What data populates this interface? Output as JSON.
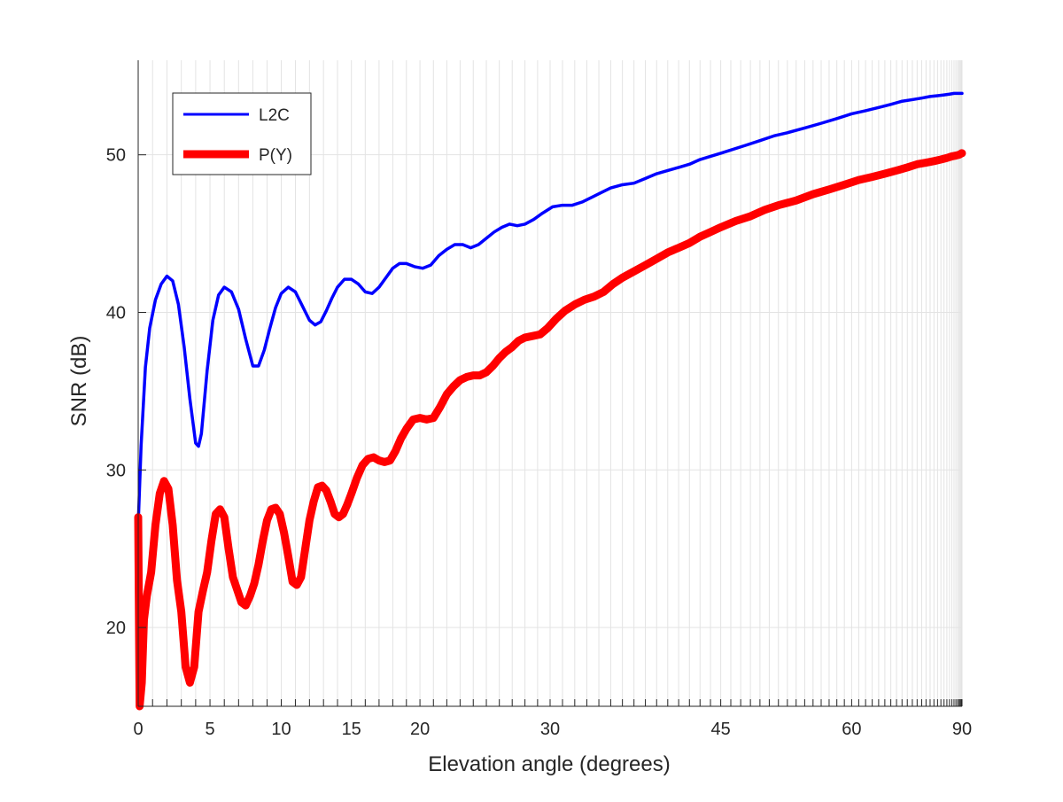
{
  "chart_data": {
    "type": "line",
    "title": "",
    "xlabel": "Elevation angle (degrees)",
    "ylabel": "SNR (dB)",
    "x_scale": "sine of elevation angle",
    "xlim": [
      0,
      90
    ],
    "ylim": [
      15,
      56
    ],
    "x_ticks": [
      0,
      5,
      10,
      15,
      20,
      30,
      45,
      60,
      90
    ],
    "y_ticks": [
      20,
      30,
      40,
      50
    ],
    "grid": true,
    "legend_position": "top-left",
    "series": [
      {
        "name": "L2C",
        "color": "#0000ff",
        "x": [
          0,
          0.2,
          0.5,
          0.8,
          1.2,
          1.6,
          2.0,
          2.4,
          2.8,
          3.2,
          3.6,
          4.0,
          4.2,
          4.4,
          4.8,
          5.2,
          5.6,
          6.0,
          6.5,
          7.0,
          7.5,
          8.0,
          8.4,
          8.8,
          9.2,
          9.6,
          10.0,
          10.5,
          11.0,
          11.5,
          12.0,
          12.4,
          12.8,
          13.2,
          13.6,
          14.0,
          14.5,
          15.0,
          15.5,
          16.0,
          16.5,
          17.0,
          17.5,
          18.0,
          18.5,
          19.0,
          19.6,
          20.2,
          20.8,
          21.4,
          22.0,
          22.6,
          23.2,
          23.8,
          24.4,
          25.0,
          25.6,
          26.2,
          26.8,
          27.4,
          28.0,
          28.7,
          29.4,
          30.2,
          31.0,
          31.8,
          32.6,
          33.4,
          34.2,
          35.0,
          36.0,
          37.0,
          38.0,
          39.0,
          40.0,
          41.0,
          42.0,
          43.0,
          44.0,
          45.0,
          46.0,
          47.5,
          49.0,
          50.5,
          52.0,
          54.0,
          56.0,
          58.0,
          60.0,
          62.0,
          64.0,
          66.0,
          68.0,
          70.0,
          72.0,
          74.0,
          76.0,
          78.0,
          80.0,
          82.0,
          84.0,
          86.0,
          88.0,
          90.0
        ],
        "values": [
          26.5,
          31.5,
          36.5,
          39.0,
          40.8,
          41.8,
          42.3,
          42.0,
          40.5,
          37.8,
          34.5,
          31.7,
          31.5,
          32.3,
          36.3,
          39.5,
          41.1,
          41.6,
          41.3,
          40.2,
          38.3,
          36.6,
          36.6,
          37.6,
          39.0,
          40.3,
          41.2,
          41.6,
          41.3,
          40.4,
          39.5,
          39.2,
          39.4,
          40.1,
          40.9,
          41.6,
          42.1,
          42.1,
          41.8,
          41.3,
          41.2,
          41.6,
          42.2,
          42.8,
          43.1,
          43.1,
          42.9,
          42.8,
          43.0,
          43.6,
          44.0,
          44.3,
          44.3,
          44.1,
          44.3,
          44.7,
          45.1,
          45.4,
          45.6,
          45.5,
          45.6,
          45.9,
          46.3,
          46.7,
          46.8,
          46.8,
          47.0,
          47.3,
          47.6,
          47.9,
          48.1,
          48.2,
          48.5,
          48.8,
          49.0,
          49.2,
          49.4,
          49.7,
          49.9,
          50.1,
          50.3,
          50.6,
          50.9,
          51.2,
          51.4,
          51.7,
          52.0,
          52.3,
          52.6,
          52.8,
          53.0,
          53.2,
          53.4,
          53.5,
          53.6,
          53.7,
          53.75,
          53.8,
          53.85,
          53.9,
          53.9,
          53.9,
          53.9,
          53.9
        ]
      },
      {
        "name": "P(Y)",
        "color": "#ff0000",
        "x": [
          0,
          0.1,
          0.25,
          0.4,
          0.6,
          0.9,
          1.2,
          1.5,
          1.8,
          2.1,
          2.4,
          2.7,
          3.0,
          3.3,
          3.6,
          3.9,
          4.2,
          4.5,
          4.8,
          5.1,
          5.4,
          5.7,
          6.0,
          6.3,
          6.6,
          6.9,
          7.2,
          7.5,
          7.8,
          8.1,
          8.4,
          8.7,
          9.0,
          9.3,
          9.6,
          9.9,
          10.2,
          10.5,
          10.8,
          11.1,
          11.4,
          11.7,
          12.0,
          12.3,
          12.6,
          12.9,
          13.2,
          13.5,
          13.8,
          14.1,
          14.4,
          14.7,
          15.0,
          15.4,
          15.8,
          16.2,
          16.6,
          17.0,
          17.4,
          17.8,
          18.2,
          18.6,
          19.0,
          19.5,
          20.0,
          20.5,
          21.0,
          21.5,
          22.0,
          22.5,
          23.0,
          23.5,
          24.0,
          24.5,
          25.0,
          25.5,
          26.0,
          26.5,
          27.0,
          27.5,
          28.0,
          28.6,
          29.2,
          29.8,
          30.5,
          31.2,
          32.0,
          32.8,
          33.6,
          34.4,
          35.2,
          36.0,
          37.0,
          38.0,
          39.0,
          40.0,
          41.0,
          42.0,
          43.0,
          44.0,
          45.0,
          46.5,
          48.0,
          49.5,
          51.0,
          53.0,
          55.0,
          57.0,
          59.0,
          61.0,
          63.0,
          65.0,
          67.0,
          69.0,
          71.0,
          73.0,
          75.0,
          77.0,
          79.0,
          81.0,
          83.0,
          85.0,
          86.5,
          88.0,
          89.0,
          90.0
        ],
        "values": [
          27.0,
          15.0,
          16.5,
          20.5,
          22.0,
          23.5,
          26.5,
          28.5,
          29.3,
          28.8,
          26.5,
          23.0,
          21.0,
          17.5,
          16.5,
          17.5,
          21.0,
          22.3,
          23.5,
          25.5,
          27.2,
          27.5,
          27.0,
          25.0,
          23.2,
          22.4,
          21.6,
          21.4,
          22.0,
          22.8,
          24.0,
          25.5,
          26.8,
          27.5,
          27.6,
          27.2,
          26.0,
          24.5,
          22.9,
          22.7,
          23.2,
          25.0,
          26.8,
          28.0,
          28.9,
          29.0,
          28.7,
          28.0,
          27.2,
          27.0,
          27.2,
          27.8,
          28.5,
          29.5,
          30.3,
          30.7,
          30.8,
          30.6,
          30.5,
          30.6,
          31.2,
          32.0,
          32.6,
          33.2,
          33.3,
          33.2,
          33.3,
          34.0,
          34.8,
          35.3,
          35.7,
          35.9,
          36.0,
          36.0,
          36.2,
          36.6,
          37.1,
          37.5,
          37.8,
          38.2,
          38.4,
          38.5,
          38.6,
          39.0,
          39.6,
          40.1,
          40.5,
          40.8,
          41.0,
          41.3,
          41.8,
          42.2,
          42.6,
          43.0,
          43.4,
          43.8,
          44.1,
          44.4,
          44.8,
          45.1,
          45.4,
          45.8,
          46.1,
          46.5,
          46.8,
          47.1,
          47.5,
          47.8,
          48.1,
          48.4,
          48.6,
          48.8,
          49.0,
          49.2,
          49.4,
          49.5,
          49.6,
          49.7,
          49.8,
          49.9,
          49.95,
          50.0,
          50.05,
          50.1,
          50.1,
          50.1
        ]
      }
    ]
  }
}
